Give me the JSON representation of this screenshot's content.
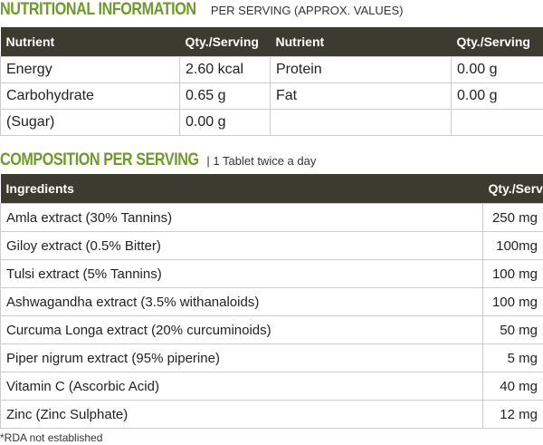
{
  "nutrition": {
    "title": "NUTRITIONAL INFORMATION",
    "subtitle": "PER SERVING (APPROX. VALUES)",
    "header": [
      "Nutrient",
      "Qty./Serving",
      "Nutrient",
      "Qty./Serving"
    ],
    "rows": [
      [
        "Energy",
        "2.60 kcal",
        "Protein",
        "0.00 g"
      ],
      [
        "Carbohydrate",
        "0.65 g",
        "Fat",
        "0.00 g"
      ],
      [
        "(Sugar)",
        "0.00 g"
      ]
    ]
  },
  "composition": {
    "title": "COMPOSITION PER SERVING",
    "subtitle": "| 1 Tablet twice a day",
    "header": [
      "Ingredients",
      "Qty./Serving"
    ],
    "rows": [
      [
        "Amla extract (30% Tannins)",
        "250 mg"
      ],
      [
        "Giloy extract (0.5% Bitter)",
        "100mg"
      ],
      [
        "Tulsi extract (5% Tannins)",
        "100 mg"
      ],
      [
        "Ashwagandha extract (3.5% withanaloids)",
        "100 mg"
      ],
      [
        "Curcuma Longa extract (20% curcuminoids)",
        "50 mg"
      ],
      [
        "Piper nigrum extract (95% piperine)",
        "5 mg"
      ],
      [
        "Vitamin C (Ascorbic Acid)",
        "40 mg"
      ],
      [
        "Zinc (Zinc Sulphate)",
        "12 mg"
      ]
    ]
  },
  "footnote": "*RDA not established"
}
